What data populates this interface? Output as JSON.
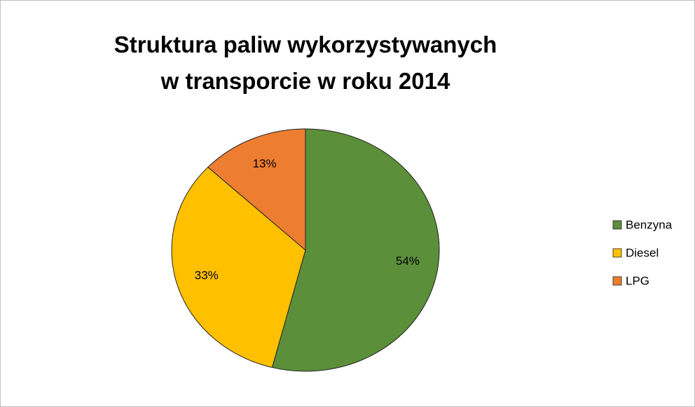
{
  "chart_data": {
    "type": "pie",
    "title": "Struktura paliw wykorzystywanych\nw transporcie w roku 2014",
    "categories": [
      "Benzyna",
      "Diesel",
      "LPG"
    ],
    "values": [
      54,
      33,
      13
    ],
    "value_labels": [
      "54%",
      "33%",
      "13%"
    ],
    "colors": [
      "#5b8f3a",
      "#ffc000",
      "#ed7d31"
    ],
    "legend": "right"
  }
}
